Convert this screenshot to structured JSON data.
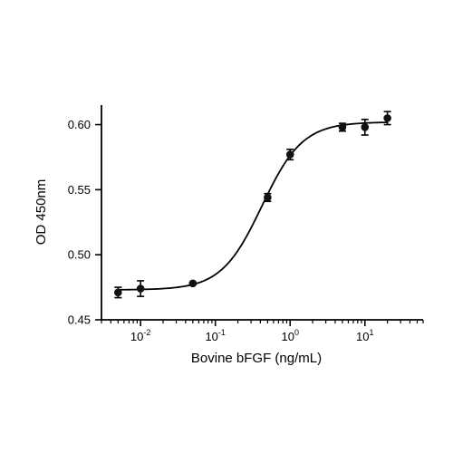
{
  "chart_data": {
    "type": "scatter",
    "title": "",
    "xlabel": "Bovine bFGF (ng/mL)",
    "ylabel": "OD 450nm",
    "xscale": "log",
    "xlim": [
      0.003,
      60
    ],
    "ylim": [
      0.45,
      0.615
    ],
    "grid": false,
    "x_ticks": [
      {
        "value": 0.01,
        "base": "10",
        "exp": "-2"
      },
      {
        "value": 0.1,
        "base": "10",
        "exp": "-1"
      },
      {
        "value": 1,
        "base": "10",
        "exp": "0"
      },
      {
        "value": 10,
        "base": "10",
        "exp": "1"
      }
    ],
    "y_ticks": [
      {
        "value": 0.45,
        "label": "0.45"
      },
      {
        "value": 0.5,
        "label": "0.50"
      },
      {
        "value": 0.55,
        "label": "0.55"
      },
      {
        "value": 0.6,
        "label": "0.60"
      }
    ],
    "series": [
      {
        "x": [
          0.005,
          0.01,
          0.05,
          0.5,
          1,
          5,
          10,
          20
        ],
        "y": [
          0.471,
          0.474,
          0.478,
          0.544,
          0.577,
          0.598,
          0.598,
          0.605
        ],
        "error": [
          0.004,
          0.006,
          0.001,
          0.003,
          0.004,
          0.003,
          0.006,
          0.005
        ],
        "color": "#111111"
      }
    ],
    "fit_curve": {
      "type": "4PL",
      "bottom": 0.473,
      "top": 0.602,
      "ec50": 0.42,
      "hill": 1.6,
      "color": "#000000"
    }
  }
}
